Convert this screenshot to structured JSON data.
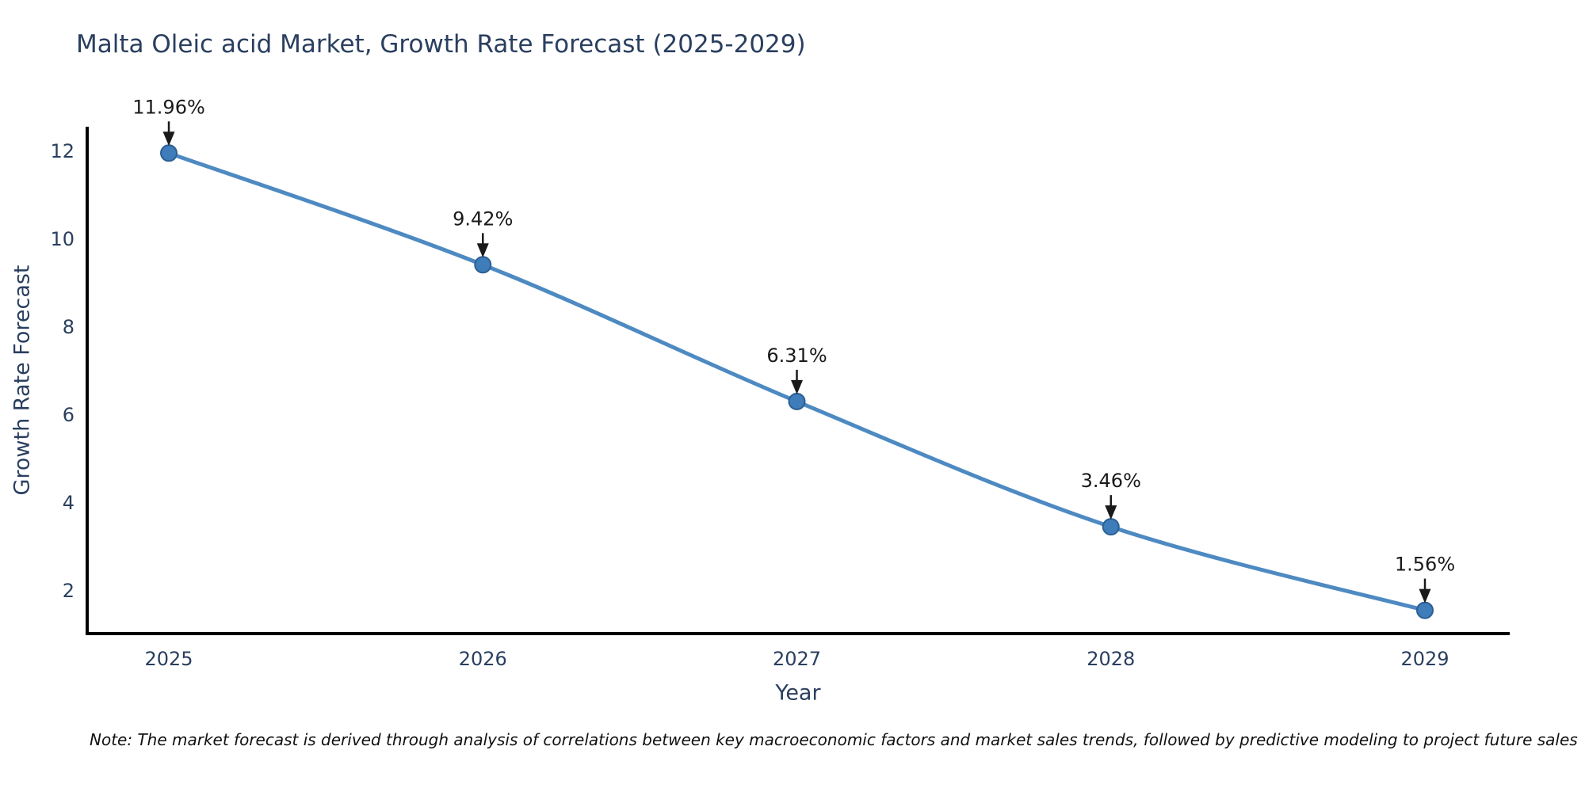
{
  "chart_data": {
    "type": "line",
    "title": "Malta Oleic acid Market, Growth Rate Forecast (2025-2029)",
    "xlabel": "Year",
    "ylabel": "Growth Rate Forecast",
    "note": "Note: The market forecast is derived through analysis of correlations between key macroeconomic factors and market sales trends, followed by predictive modeling to project future sales",
    "x": [
      2025,
      2026,
      2027,
      2028,
      2029
    ],
    "values": [
      11.96,
      9.42,
      6.31,
      3.46,
      1.56
    ],
    "point_labels": [
      "11.96%",
      "9.42%",
      "6.31%",
      "3.46%",
      "1.56%"
    ],
    "x_tick_labels": [
      "2025",
      "2026",
      "2027",
      "2028",
      "2029"
    ],
    "y_ticks": [
      2,
      4,
      6,
      8,
      10,
      12
    ],
    "xlim": [
      2024.74,
      2029.27
    ],
    "ylim": [
      1.03,
      12.56
    ],
    "grid": false,
    "legend": null,
    "line_smooth": true,
    "colors": {
      "line": "#4e8ac2",
      "marker_fill": "#3e7cba",
      "marker_edge": "#2b5f94",
      "spine": "#000000",
      "annotation": "#1a1a1a",
      "label_text": "#2a3f5f",
      "background": "#ffffff"
    }
  }
}
